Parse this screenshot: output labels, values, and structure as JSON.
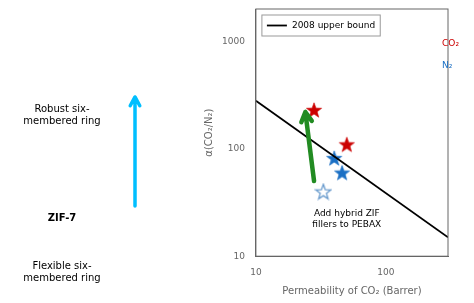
{
  "chart_data": {
    "type": "scatter",
    "log": true,
    "xlabel": "Permeability of CO₂ (Barrer)",
    "ylabel": "α(CO₂/N₂)",
    "xlim": [
      10,
      300
    ],
    "ylim": [
      10,
      2000
    ],
    "xticks": [
      10,
      100
    ],
    "yticks": [
      10,
      100,
      1000
    ],
    "grid": false,
    "legend": "upper left",
    "series": [
      {
        "name": "2008 upper bound",
        "type": "line",
        "color": "#000000",
        "x": [
          10,
          300
        ],
        "values": [
          280,
          15
        ]
      },
      {
        "type": "scatter",
        "marker": "star",
        "color": "#cc0000",
        "x": [
          28,
          50
        ],
        "values": [
          230,
          110
        ]
      },
      {
        "type": "scatter",
        "marker": "star",
        "color": "#1a6fc4",
        "x": [
          40,
          46
        ],
        "values": [
          82,
          60
        ]
      },
      {
        "type": "scatter",
        "marker": "open_star",
        "color": "#6699cc",
        "x": [
          33
        ],
        "values": [
          40
        ]
      }
    ],
    "annotations": [
      {
        "text": "Add hybrid ZIF\nfillers to PEBAX",
        "x": 50,
        "y": 18
      },
      {
        "text": "CO₂",
        "x": 270,
        "y": 950,
        "color": "#cc0000"
      },
      {
        "text": "N₂",
        "x": 270,
        "y": 600,
        "color": "#1a6fc4"
      },
      {
        "type": "arrow",
        "x": [
          28,
          24
        ],
        "y": [
          50,
          220
        ],
        "color": "#228B22"
      },
      {
        "text": "Robust six-\nmembered ring"
      },
      {
        "text": "ZIF-7",
        "weight": "bold"
      },
      {
        "text": "Flexible six-\nmembered ring"
      },
      {
        "type": "arrow",
        "color": "#00bfff"
      }
    ]
  }
}
